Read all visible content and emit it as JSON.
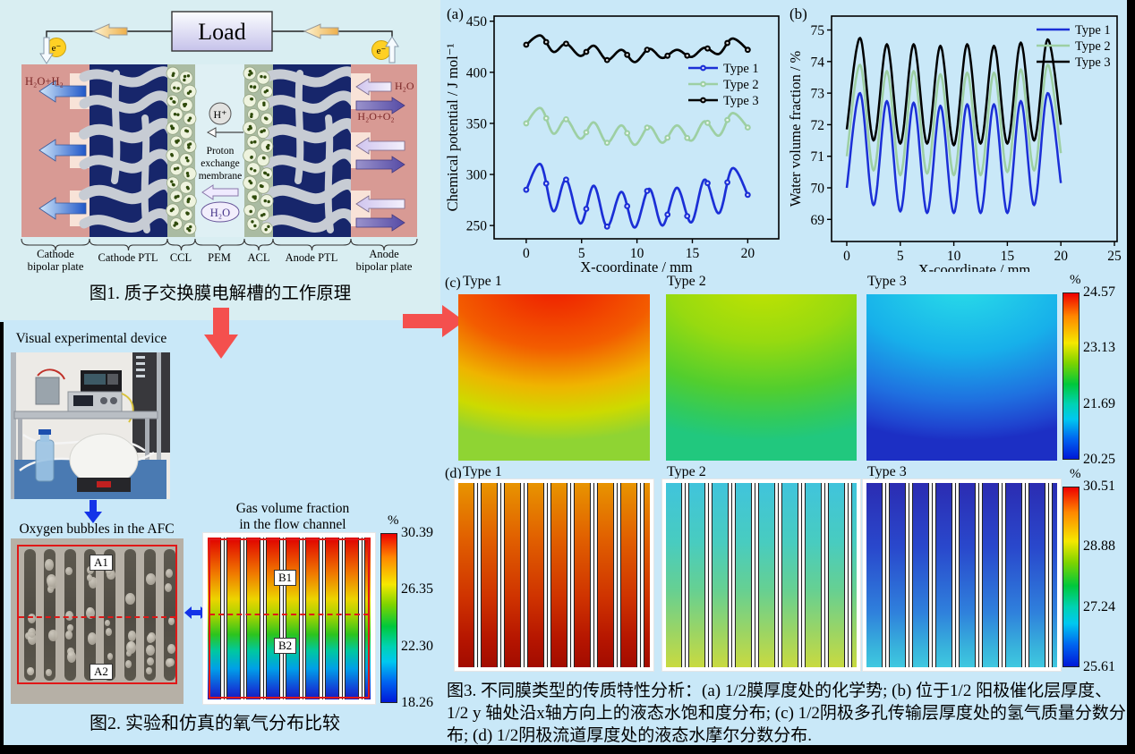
{
  "fig1": {
    "load_label": "Load",
    "electron_label": "e⁻",
    "cathode_out_label": "H₂O+H₂",
    "anode_in_label": "H₂O",
    "anode_out_label": "H₂O+O₂",
    "proton_label": "H⁺",
    "membrane_line1": "Proton",
    "membrane_line2": "exchange",
    "membrane_line3": "membrane",
    "water_label": "H₂O",
    "layers": [
      "Cathode\nbipolar plate",
      "Cathode PTL",
      "CCL",
      "PEM",
      "ACL",
      "Anode PTL",
      "Anode\nbipolar plate"
    ],
    "caption": "图1.  质子交换膜电解槽的工作原理"
  },
  "left_column": {
    "device_photo_label": "Visual experimental device",
    "bubbles_photo_label": "Oxygen bubbles in the AFC",
    "region_a1": "A1",
    "region_a2": "A2",
    "sim_title_line1": "Gas volume fraction",
    "sim_title_line2": "in the flow channel",
    "region_b1": "B1",
    "region_b2": "B2",
    "fig2_caption": "图2.  实验和仿真的氧气分布比较"
  },
  "fig3_caption": "图3. 不同膜类型的传质特性分析：(a) 1/2膜厚度处的化学势; (b) 位于1/2 阳极催化层厚度、1/2 y 轴处沿x轴方向上的液态水饱和度分布; (c) 1/2阴极多孔传输层厚度处的氢气质量分数分布; (d) 1/2阴极流道厚度处的液态水摩尔分数分布.",
  "colors": {
    "background": "#c9e8f8",
    "fig1_panel": "#d9eef2",
    "arrow_red": "#f4504e",
    "arrow_blue": "#1433e8",
    "type1_blue": "#1b2fd6",
    "type2_green": "#9dcfa3",
    "type3_black": "#000000",
    "jet": [
      [
        "#ee0000",
        0
      ],
      [
        "#ff8800",
        14
      ],
      [
        "#f5e800",
        30
      ],
      [
        "#7ed400",
        42
      ],
      [
        "#00c83c",
        55
      ],
      [
        "#00d2b4",
        67
      ],
      [
        "#00c8f0",
        76
      ],
      [
        "#0064f0",
        88
      ],
      [
        "#0018d8",
        100
      ]
    ]
  },
  "chart_data": [
    {
      "id": "a",
      "type": "line",
      "panel_label": "(a)",
      "xlabel": "X-coordinate / mm",
      "ylabel": "Chemical potential / J mol⁻¹",
      "xlim": [
        -2.9,
        22.8
      ],
      "ylim": [
        237,
        455
      ],
      "xticks": [
        0,
        5,
        10,
        15,
        20
      ],
      "yticks": [
        250,
        300,
        350,
        400,
        450
      ],
      "grid": false,
      "legend_position": "middle-right",
      "has_markers": true,
      "series": [
        {
          "name": "Type 1",
          "color": "#1b2fd6",
          "points": [
            [
              0,
              285
            ],
            [
              1.3,
              310
            ],
            [
              2.45,
              264
            ],
            [
              3.6,
              295
            ],
            [
              4.9,
              252
            ],
            [
              6.1,
              289
            ],
            [
              7.3,
              249
            ],
            [
              8.6,
              283
            ],
            [
              9.8,
              248
            ],
            [
              11.1,
              286
            ],
            [
              12.3,
              250
            ],
            [
              13.6,
              287
            ],
            [
              14.9,
              253
            ],
            [
              16.1,
              295
            ],
            [
              17.4,
              262
            ],
            [
              18.6,
              306
            ],
            [
              20,
              280
            ]
          ]
        },
        {
          "name": "Type 2",
          "color": "#9dcfa3",
          "points": [
            [
              0,
              350
            ],
            [
              1.3,
              365
            ],
            [
              2.45,
              340
            ],
            [
              3.6,
              354
            ],
            [
              4.9,
              335
            ],
            [
              6.1,
              351
            ],
            [
              7.3,
              331
            ],
            [
              8.6,
              348
            ],
            [
              9.8,
              329
            ],
            [
              11.1,
              347
            ],
            [
              12.3,
              331
            ],
            [
              13.6,
              348
            ],
            [
              14.9,
              333
            ],
            [
              16.1,
              352
            ],
            [
              17.4,
              338
            ],
            [
              18.6,
              360
            ],
            [
              20,
              346
            ]
          ]
        },
        {
          "name": "Type 3",
          "color": "#000000",
          "points": [
            [
              0,
              427
            ],
            [
              1.3,
              436
            ],
            [
              2.45,
              420
            ],
            [
              3.6,
              428
            ],
            [
              4.9,
              416
            ],
            [
              6.1,
              426
            ],
            [
              7.3,
              412
            ],
            [
              8.6,
              422
            ],
            [
              9.8,
              410
            ],
            [
              11.1,
              423
            ],
            [
              12.3,
              414
            ],
            [
              13.6,
              422
            ],
            [
              14.9,
              415
            ],
            [
              16.1,
              424
            ],
            [
              17.4,
              418
            ],
            [
              18.6,
              433
            ],
            [
              20,
              422
            ]
          ]
        }
      ]
    },
    {
      "id": "b",
      "type": "line",
      "panel_label": "(b)",
      "xlabel": "X-coordinate / mm",
      "ylabel": "Water volume fraction / %",
      "xlim": [
        -1.42,
        25.25
      ],
      "ylim": [
        68.3,
        75.44
      ],
      "xticks": [
        0,
        5,
        10,
        15,
        20,
        25
      ],
      "yticks": [
        69,
        70,
        71,
        72,
        73,
        74,
        75
      ],
      "grid": false,
      "legend_position": "top-right",
      "has_markers": false,
      "series": [
        {
          "name": "Type 1",
          "color": "#1b2fd6",
          "points": [
            [
              0,
              70.0
            ],
            [
              1.25,
              73.0
            ],
            [
              2.5,
              69.45
            ],
            [
              3.75,
              72.75
            ],
            [
              5,
              69.25
            ],
            [
              6.25,
              72.7
            ],
            [
              7.5,
              69.2
            ],
            [
              8.75,
              72.6
            ],
            [
              10,
              69.2
            ],
            [
              11.25,
              72.65
            ],
            [
              12.5,
              69.2
            ],
            [
              13.75,
              72.65
            ],
            [
              15,
              69.2
            ],
            [
              16.25,
              72.75
            ],
            [
              17.5,
              69.45
            ],
            [
              18.75,
              73.0
            ],
            [
              20,
              70.15
            ]
          ]
        },
        {
          "name": "Type 2",
          "color": "#9dcfa3",
          "points": [
            [
              0,
              71.0
            ],
            [
              1.25,
              73.9
            ],
            [
              2.5,
              70.55
            ],
            [
              3.75,
              73.7
            ],
            [
              5,
              70.4
            ],
            [
              6.25,
              73.7
            ],
            [
              7.5,
              70.45
            ],
            [
              8.75,
              73.6
            ],
            [
              10,
              70.4
            ],
            [
              11.25,
              73.65
            ],
            [
              12.5,
              70.4
            ],
            [
              13.75,
              73.65
            ],
            [
              15,
              70.5
            ],
            [
              16.25,
              73.75
            ],
            [
              17.5,
              70.55
            ],
            [
              18.75,
              73.9
            ],
            [
              20,
              71.1
            ]
          ]
        },
        {
          "name": "Type 3",
          "color": "#000000",
          "points": [
            [
              0,
              71.85
            ],
            [
              1.25,
              74.75
            ],
            [
              2.5,
              71.5
            ],
            [
              3.75,
              74.55
            ],
            [
              5,
              71.4
            ],
            [
              6.25,
              74.55
            ],
            [
              7.5,
              71.4
            ],
            [
              8.75,
              74.5
            ],
            [
              10,
              71.35
            ],
            [
              11.25,
              74.55
            ],
            [
              12.5,
              71.4
            ],
            [
              13.75,
              74.5
            ],
            [
              15,
              71.4
            ],
            [
              16.25,
              74.6
            ],
            [
              17.5,
              71.5
            ],
            [
              18.75,
              74.7
            ],
            [
              20,
              72.0
            ]
          ]
        }
      ]
    },
    {
      "id": "c",
      "type": "heatmap",
      "panel_label": "(c)",
      "unit": "%",
      "colorbar_ticks": [
        "24.57",
        "23.13",
        "21.69",
        "20.25"
      ],
      "panels": [
        {
          "label": "Type 1",
          "stops": [
            [
              "#ee1800",
              0
            ],
            [
              "#f35c00",
              42
            ],
            [
              "#efb400",
              66
            ],
            [
              "#cdda00",
              84
            ],
            [
              "#8fd433",
              100
            ]
          ]
        },
        {
          "label": "Type 2",
          "stops": [
            [
              "#c4e300",
              0
            ],
            [
              "#97da10",
              38
            ],
            [
              "#52ce2e",
              68
            ],
            [
              "#2fca60",
              88
            ],
            [
              "#21c87e",
              100
            ]
          ]
        },
        {
          "label": "Type 3",
          "stops": [
            [
              "#2adfe8",
              0
            ],
            [
              "#17b0ea",
              45
            ],
            [
              "#1f70e0",
              75
            ],
            [
              "#1f45d0",
              92
            ],
            [
              "#1c2fc4",
              100
            ]
          ]
        }
      ]
    },
    {
      "id": "d",
      "type": "heatmap",
      "panel_label": "(d)",
      "unit": "%",
      "colorbar_ticks": [
        "30.51",
        "28.88",
        "27.24",
        "25.61"
      ],
      "panels": [
        {
          "label": "Type 1",
          "stops": [
            [
              "#e89400",
              0
            ],
            [
              "#e16000",
              30
            ],
            [
              "#cf3300",
              62
            ],
            [
              "#b41400",
              86
            ],
            [
              "#a20c00",
              100
            ]
          ]
        },
        {
          "label": "Type 2",
          "stops": [
            [
              "#40c4dc",
              0
            ],
            [
              "#48ccc0",
              32
            ],
            [
              "#66d092",
              58
            ],
            [
              "#9ed562",
              82
            ],
            [
              "#c9da40",
              100
            ]
          ]
        },
        {
          "label": "Type 3",
          "stops": [
            [
              "#2b2cb2",
              0
            ],
            [
              "#2948cc",
              35
            ],
            [
              "#2f80dc",
              70
            ],
            [
              "#38b4dc",
              90
            ],
            [
              "#40c8e0",
              100
            ]
          ]
        }
      ]
    },
    {
      "id": "gas",
      "type": "heatmap",
      "unit": "%",
      "colorbar_ticks": [
        "30.39",
        "26.35",
        "22.30",
        "18.26"
      ],
      "stops": [
        [
          "#e00000",
          0
        ],
        [
          "#f07800",
          22
        ],
        [
          "#ecd400",
          38
        ],
        [
          "#a8d400",
          48
        ],
        [
          "#2cc41e",
          60
        ],
        [
          "#00c8a0",
          70
        ],
        [
          "#00a0e8",
          81
        ],
        [
          "#1144d8",
          93
        ],
        [
          "#1818bc",
          100
        ]
      ]
    }
  ]
}
